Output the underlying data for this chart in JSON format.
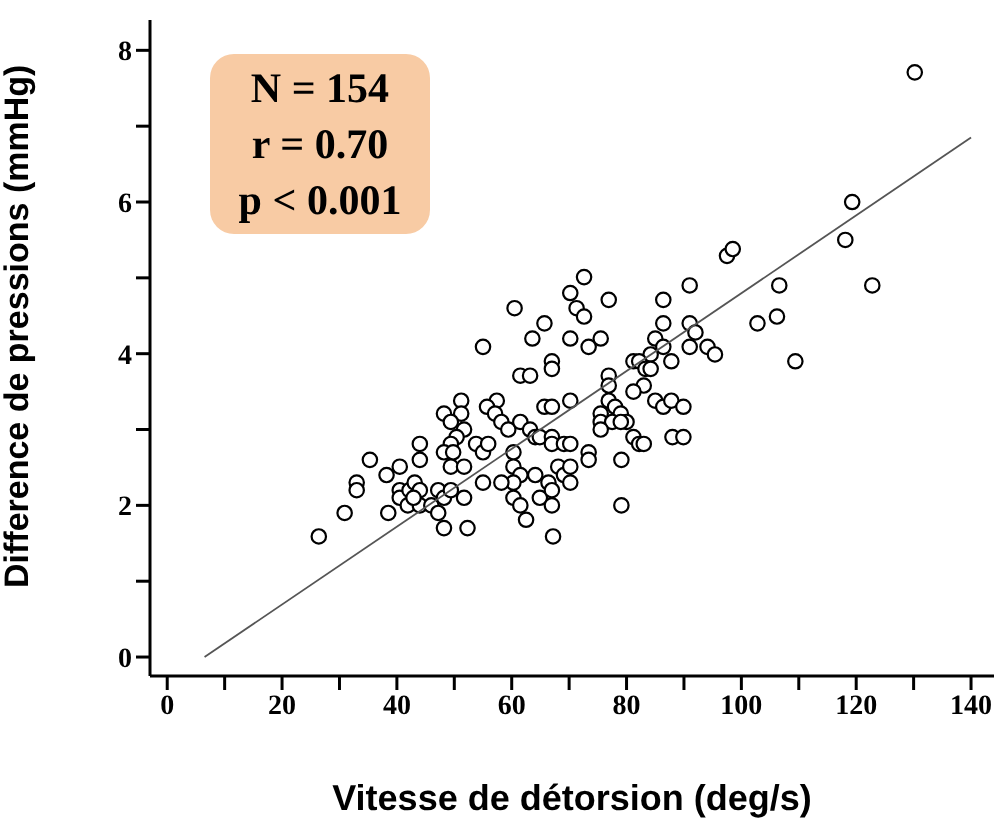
{
  "chart_data": {
    "type": "scatter",
    "xlabel": "Vitesse de détorsion (deg/s)",
    "ylabel": "Difference de pressions (mmHg)",
    "annotations": [
      "N = 154",
      "r = 0.70",
      "p < 0.001"
    ],
    "xlim": [
      -3,
      144
    ],
    "ylim": [
      -0.25,
      8.4
    ],
    "xticks": [
      0,
      {
        "value": 10,
        "label": null
      },
      20,
      {
        "value": 30,
        "label": null
      },
      40,
      {
        "value": 50,
        "label": null
      },
      60,
      {
        "value": 70,
        "label": null
      },
      80,
      {
        "value": 90,
        "label": null
      },
      100,
      {
        "value": 110,
        "label": null
      },
      120,
      {
        "value": 130,
        "label": null
      },
      140
    ],
    "yticks": [
      0,
      {
        "value": 1,
        "label": null
      },
      2,
      {
        "value": 3,
        "label": null
      },
      4,
      {
        "value": 5,
        "label": null
      },
      6,
      {
        "value": 7,
        "label": null
      },
      8
    ],
    "grid": false,
    "legend": false,
    "series": [
      {
        "color": "#000000",
        "marker": "circle",
        "x": [
          130.2,
          119.3,
          118.1,
          122.8,
          106.6,
          106.2,
          102.8,
          109.4,
          97.5,
          98.5,
          91.0,
          86.4,
          86.4,
          91.0,
          92.0,
          91.0,
          94.1,
          95.4,
          85.0,
          86.4,
          84.2,
          81.2,
          82.2,
          83.3,
          87.8,
          84.2,
          76.9,
          76.9,
          83.0,
          81.2,
          85.0,
          86.4,
          87.8,
          89.9,
          76.9,
          75.5,
          78.0,
          79.0,
          75.5,
          77.5,
          80.0,
          75.5,
          79.0,
          81.2,
          82.2,
          83.0,
          88.0,
          89.9,
          79.1,
          79.1,
          76.9,
          72.6,
          70.2,
          71.3,
          72.6,
          65.7,
          70.2,
          73.4,
          75.5,
          60.5,
          63.6,
          55.0,
          67.0,
          67.0,
          61.5,
          63.2,
          70.2,
          57.4,
          55.7,
          65.7,
          67.0,
          57.1,
          58.2,
          59.4,
          61.5,
          63.2,
          64.1,
          64.9,
          67.0,
          67.0,
          69.1,
          70.2,
          73.4,
          73.4,
          68.1,
          69.1,
          70.2,
          70.2,
          60.3,
          60.3,
          61.5,
          64.1,
          60.3,
          58.2,
          55.0,
          60.3,
          61.5,
          62.5,
          64.9,
          66.4,
          67.0,
          67.0,
          67.2,
          51.2,
          51.2,
          48.2,
          49.4,
          51.7,
          50.4,
          49.4,
          48.2,
          49.8,
          49.4,
          51.7,
          53.8,
          55.0,
          55.9,
          44.0,
          44.0,
          40.5,
          35.3,
          38.2,
          33.0,
          33.0,
          30.9,
          26.4,
          38.5,
          40.5,
          40.5,
          42.2,
          43.1,
          41.9,
          44.0,
          44.0,
          46.0,
          47.2,
          47.2,
          48.2,
          49.4,
          51.7,
          48.2,
          52.3,
          42.9
        ],
        "values": [
          7.71,
          6.0,
          5.5,
          4.9,
          4.9,
          4.49,
          4.4,
          3.9,
          5.29,
          5.38,
          4.9,
          4.71,
          4.4,
          4.4,
          4.28,
          4.09,
          4.09,
          3.99,
          4.2,
          4.09,
          3.99,
          3.9,
          3.9,
          3.8,
          3.9,
          3.8,
          3.71,
          3.58,
          3.58,
          3.5,
          3.38,
          3.3,
          3.38,
          3.3,
          3.38,
          3.21,
          3.3,
          3.21,
          3.1,
          3.1,
          3.1,
          3.0,
          3.1,
          2.9,
          2.81,
          2.81,
          2.9,
          2.9,
          2.6,
          2.0,
          4.71,
          5.01,
          4.8,
          4.6,
          4.49,
          4.4,
          4.2,
          4.09,
          4.2,
          4.6,
          4.2,
          4.09,
          3.9,
          3.8,
          3.71,
          3.71,
          3.38,
          3.38,
          3.3,
          3.3,
          3.3,
          3.21,
          3.1,
          3.0,
          3.1,
          3.0,
          2.9,
          2.9,
          2.9,
          2.81,
          2.81,
          2.81,
          2.7,
          2.6,
          2.51,
          2.4,
          2.51,
          2.3,
          2.7,
          2.51,
          2.4,
          2.4,
          2.3,
          2.3,
          2.3,
          2.1,
          2.0,
          1.81,
          2.1,
          2.3,
          2.2,
          2.0,
          1.59,
          3.38,
          3.21,
          3.21,
          3.1,
          3.0,
          2.9,
          2.81,
          2.7,
          2.7,
          2.51,
          2.51,
          2.81,
          2.7,
          2.81,
          2.81,
          2.6,
          2.51,
          2.6,
          2.4,
          2.3,
          2.2,
          1.9,
          1.59,
          1.9,
          2.2,
          2.1,
          2.2,
          2.3,
          2.0,
          2.2,
          2.0,
          2.0,
          2.2,
          1.9,
          2.1,
          2.2,
          2.1,
          1.7,
          1.7,
          2.1
        ]
      },
      {
        "type": "line",
        "color": "#555555",
        "marker": "none",
        "line_style": "solid",
        "x": [
          6.5,
          140
        ],
        "values": [
          0,
          6.85
        ]
      }
    ]
  }
}
